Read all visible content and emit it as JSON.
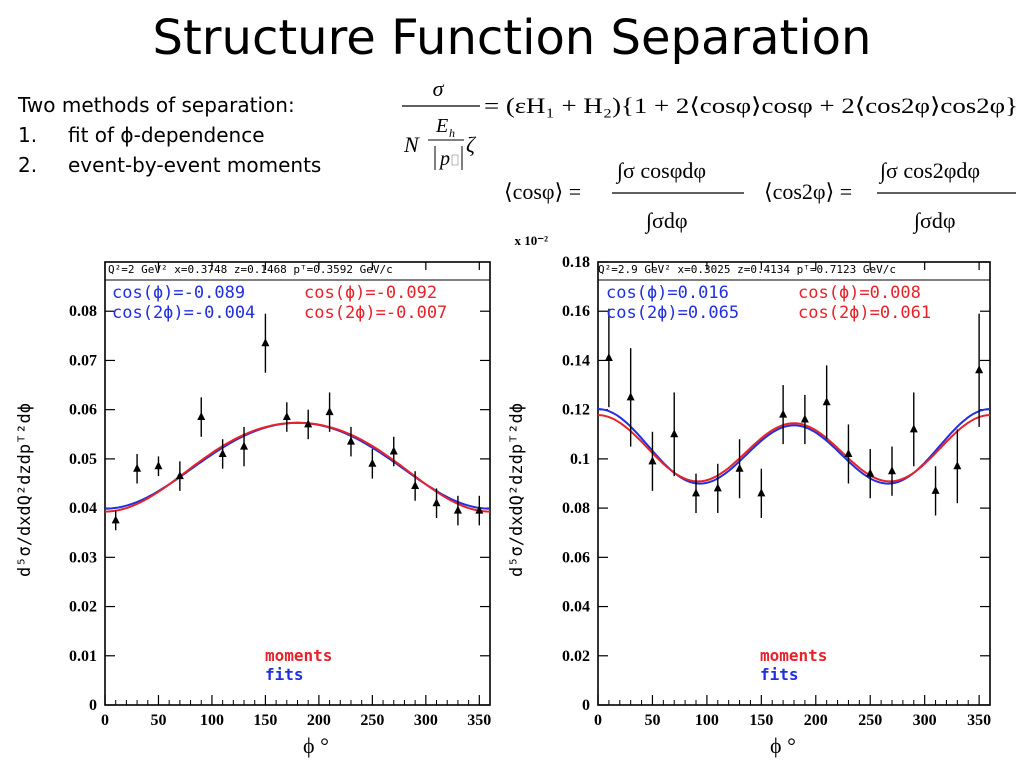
{
  "slide": {
    "title": "Structure Function Separation",
    "methods_heading": "Two methods of separation:",
    "methods": [
      {
        "num": "1.",
        "text": "fit of ϕ-dependence"
      },
      {
        "num": "2.",
        "text": "event-by-event moments"
      }
    ]
  },
  "formulas": {
    "eq1_lhs_num": "σ",
    "eq1_lhs_den_N": "N",
    "eq1_lhs_Eh": "E",
    "eq1_lhs_Eh_sub": "h",
    "eq1_lhs_p": "p",
    "eq1_lhs_zeta": "ζ",
    "eq1_rhs": "= (εH₁ + H₂){1 + 2⟨cosφ⟩cosφ + 2⟨cos2φ⟩cos2φ}",
    "eq2_lhs": "⟨cosφ⟩ =",
    "eq2_num": "∫σ cosφdφ",
    "eq2_den": "∫σdφ",
    "eq3_lhs": "⟨cos2φ⟩ =",
    "eq3_num": "∫σ cos2φdφ",
    "eq3_den": "∫σdφ"
  },
  "colors": {
    "moments": "#e8222a",
    "fits": "#2030e0",
    "axis": "#000000"
  },
  "chart_data": [
    {
      "type": "scatter",
      "header": "Q²=2 GeV² x=0.3748 z=0.1468 pᵀ=0.3592 GeV/c",
      "scale_label": "x 10⁻²",
      "ylabel": "d⁵σ/dxdQ²dzdpᵀ²dϕ",
      "xlabel": "ϕ  °",
      "xlim": [
        0,
        360
      ],
      "ylim": [
        0,
        0.09
      ],
      "xticks": [
        0,
        50,
        100,
        150,
        200,
        250,
        300,
        350
      ],
      "yticks": [
        0,
        0.01,
        0.02,
        0.03,
        0.04,
        0.05,
        0.06,
        0.07,
        0.08
      ],
      "ytick_labels": [
        "0",
        "0.01",
        "0.02",
        "0.03",
        "0.04",
        "0.05",
        "0.06",
        "0.07",
        "0.08"
      ],
      "legend_fits_cos": "cos(ϕ)=-0.089",
      "legend_fits_cos2": "cos(2ϕ)=-0.004",
      "legend_moments_cos": "cos(ϕ)=-0.092",
      "legend_moments_cos2": "cos(2ϕ)=-0.007",
      "legend_moments": "moments",
      "legend_fits": "fits",
      "x": [
        10,
        30,
        50,
        70,
        90,
        110,
        130,
        150,
        170,
        190,
        210,
        230,
        250,
        270,
        290,
        310,
        330,
        350
      ],
      "y": [
        0.0375,
        0.048,
        0.0485,
        0.0465,
        0.0585,
        0.051,
        0.0525,
        0.0735,
        0.0585,
        0.057,
        0.0595,
        0.0535,
        0.049,
        0.0515,
        0.0445,
        0.041,
        0.0395,
        0.0395
      ],
      "err": [
        0.002,
        0.003,
        0.002,
        0.003,
        0.004,
        0.003,
        0.004,
        0.006,
        0.003,
        0.003,
        0.004,
        0.003,
        0.003,
        0.003,
        0.003,
        0.003,
        0.003,
        0.003
      ],
      "series": [
        {
          "name": "fits",
          "A": 0.049,
          "c1": -0.089,
          "c2": -0.004
        },
        {
          "name": "moments",
          "A": 0.049,
          "c1": -0.092,
          "c2": -0.007
        }
      ]
    },
    {
      "type": "scatter",
      "header": "Q²=2.9 GeV² x=0.3025 z=0.4134 pᵀ=0.7123 GeV/c",
      "ylabel": "d⁵σ/dxdQ²dzdpᵀ²dϕ",
      "xlabel": "ϕ  °",
      "xlim": [
        0,
        360
      ],
      "ylim": [
        0,
        0.18
      ],
      "xticks": [
        0,
        50,
        100,
        150,
        200,
        250,
        300,
        350
      ],
      "yticks": [
        0,
        0.02,
        0.04,
        0.06,
        0.08,
        0.1,
        0.12,
        0.14,
        0.16,
        0.18
      ],
      "ytick_labels": [
        "0",
        "0.02",
        "0.04",
        "0.06",
        "0.08",
        "0.1",
        "0.12",
        "0.14",
        "0.16",
        "0.18"
      ],
      "legend_fits_cos": "cos(ϕ)=0.016",
      "legend_fits_cos2": "cos(2ϕ)=0.065",
      "legend_moments_cos": "cos(ϕ)=0.008",
      "legend_moments_cos2": "cos(2ϕ)=0.061",
      "legend_moments": "moments",
      "legend_fits": "fits",
      "x": [
        10,
        30,
        50,
        70,
        90,
        110,
        130,
        150,
        170,
        190,
        210,
        230,
        250,
        270,
        290,
        310,
        330,
        350
      ],
      "y": [
        0.141,
        0.125,
        0.099,
        0.11,
        0.086,
        0.088,
        0.096,
        0.086,
        0.118,
        0.116,
        0.123,
        0.102,
        0.094,
        0.095,
        0.112,
        0.087,
        0.097,
        0.136
      ],
      "err": [
        0.02,
        0.02,
        0.012,
        0.017,
        0.008,
        0.01,
        0.012,
        0.01,
        0.012,
        0.01,
        0.015,
        0.012,
        0.01,
        0.01,
        0.015,
        0.01,
        0.015,
        0.023
      ],
      "series": [
        {
          "name": "fits",
          "A": 0.1035,
          "c1": 0.016,
          "c2": 0.065
        },
        {
          "name": "moments",
          "A": 0.1035,
          "c1": 0.008,
          "c2": 0.061
        }
      ]
    }
  ]
}
